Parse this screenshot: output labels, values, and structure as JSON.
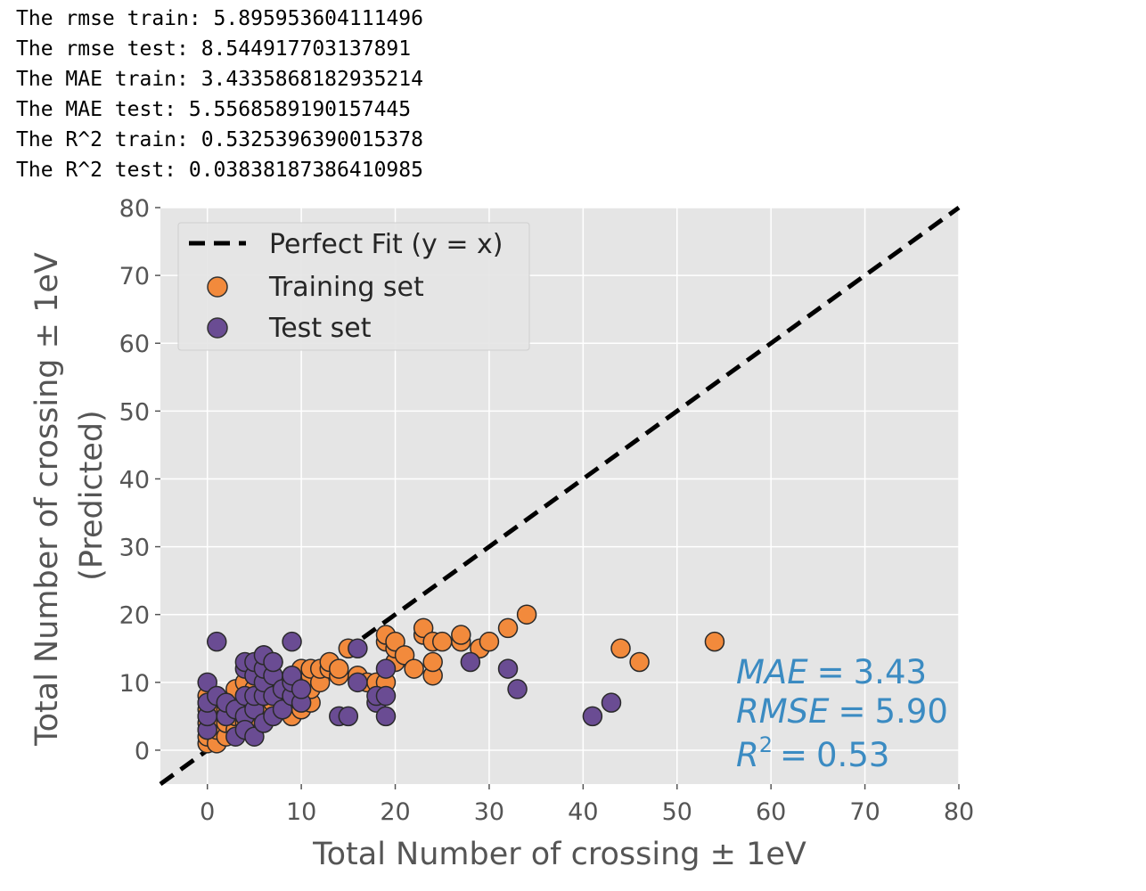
{
  "output_lines": [
    "The rmse train: 5.895953604111496",
    "The rmse test: 8.544917703137891",
    "The MAE train: 3.4335868182935214",
    "The MAE test: 5.5568589190157445",
    "The R^2 train: 0.5325396390015378",
    "The R^2 test: 0.03838187386410985"
  ],
  "chart_data": {
    "type": "scatter",
    "xlabel": "Total Number of crossing ± 1eV",
    "ylabel_lines": [
      "Total Number of crossing ± 1eV",
      "(Predicted)"
    ],
    "xlim": [
      -5,
      80
    ],
    "ylim": [
      -5,
      80
    ],
    "x_ticks": [
      0,
      10,
      20,
      30,
      40,
      50,
      60,
      70,
      80
    ],
    "y_ticks": [
      0,
      10,
      20,
      30,
      40,
      50,
      60,
      70,
      80
    ],
    "grid": true,
    "legend_position": "top-left",
    "reference_line": {
      "name": "Perfect Fit (y = x)",
      "x": [
        -5,
        80
      ],
      "y": [
        -5,
        80
      ],
      "color": "#000000"
    },
    "series": [
      {
        "name": "Training set",
        "color": "#f28a3c",
        "points": [
          [
            0,
            1
          ],
          [
            0,
            2
          ],
          [
            0,
            3
          ],
          [
            0,
            4
          ],
          [
            0,
            5
          ],
          [
            0,
            6
          ],
          [
            0,
            7
          ],
          [
            0,
            8
          ],
          [
            1,
            1
          ],
          [
            1,
            3
          ],
          [
            1,
            5
          ],
          [
            1,
            6
          ],
          [
            1,
            8
          ],
          [
            2,
            2
          ],
          [
            2,
            4
          ],
          [
            2,
            6
          ],
          [
            2,
            7
          ],
          [
            3,
            3
          ],
          [
            3,
            5
          ],
          [
            3,
            6
          ],
          [
            3,
            9
          ],
          [
            4,
            4
          ],
          [
            4,
            6
          ],
          [
            4,
            8
          ],
          [
            4,
            10
          ],
          [
            5,
            5
          ],
          [
            5,
            7
          ],
          [
            5,
            9
          ],
          [
            5,
            11
          ],
          [
            6,
            6
          ],
          [
            6,
            8
          ],
          [
            6,
            12
          ],
          [
            6,
            14
          ],
          [
            7,
            7
          ],
          [
            7,
            9
          ],
          [
            7,
            10
          ],
          [
            7,
            13
          ],
          [
            8,
            6
          ],
          [
            8,
            8
          ],
          [
            8,
            10
          ],
          [
            9,
            5
          ],
          [
            9,
            7
          ],
          [
            9,
            9
          ],
          [
            9,
            11
          ],
          [
            10,
            6
          ],
          [
            10,
            8
          ],
          [
            10,
            10
          ],
          [
            10,
            12
          ],
          [
            11,
            7
          ],
          [
            11,
            9
          ],
          [
            11,
            11
          ],
          [
            11,
            12
          ],
          [
            12,
            10
          ],
          [
            12,
            12
          ],
          [
            13,
            12
          ],
          [
            13,
            13
          ],
          [
            14,
            11
          ],
          [
            14,
            12
          ],
          [
            15,
            15
          ],
          [
            16,
            11
          ],
          [
            17,
            10
          ],
          [
            18,
            10
          ],
          [
            19,
            10
          ],
          [
            19,
            16
          ],
          [
            19,
            17
          ],
          [
            20,
            13
          ],
          [
            20,
            15
          ],
          [
            20,
            16
          ],
          [
            21,
            14
          ],
          [
            22,
            12
          ],
          [
            23,
            17
          ],
          [
            23,
            18
          ],
          [
            24,
            16
          ],
          [
            24,
            11
          ],
          [
            24,
            13
          ],
          [
            25,
            16
          ],
          [
            27,
            16
          ],
          [
            27,
            17
          ],
          [
            29,
            15
          ],
          [
            30,
            16
          ],
          [
            32,
            18
          ],
          [
            34,
            20
          ],
          [
            44,
            15
          ],
          [
            46,
            13
          ],
          [
            54,
            16
          ]
        ]
      },
      {
        "name": "Test set",
        "color": "#6a4c93",
        "points": [
          [
            0,
            3
          ],
          [
            0,
            5
          ],
          [
            0,
            7
          ],
          [
            0,
            10
          ],
          [
            1,
            8
          ],
          [
            1,
            16
          ],
          [
            2,
            5
          ],
          [
            2,
            7
          ],
          [
            3,
            2
          ],
          [
            3,
            6
          ],
          [
            4,
            5
          ],
          [
            4,
            3
          ],
          [
            4,
            8
          ],
          [
            4,
            12
          ],
          [
            4,
            13
          ],
          [
            5,
            2
          ],
          [
            5,
            6
          ],
          [
            5,
            8
          ],
          [
            5,
            11
          ],
          [
            5,
            13
          ],
          [
            6,
            4
          ],
          [
            6,
            8
          ],
          [
            6,
            10
          ],
          [
            6,
            12
          ],
          [
            6,
            14
          ],
          [
            7,
            5
          ],
          [
            7,
            8
          ],
          [
            7,
            11
          ],
          [
            7,
            13
          ],
          [
            8,
            6
          ],
          [
            8,
            9
          ],
          [
            9,
            8
          ],
          [
            9,
            10
          ],
          [
            9,
            11
          ],
          [
            9,
            16
          ],
          [
            10,
            7
          ],
          [
            10,
            9
          ],
          [
            14,
            5
          ],
          [
            15,
            5
          ],
          [
            16,
            10
          ],
          [
            16,
            15
          ],
          [
            18,
            7
          ],
          [
            18,
            8
          ],
          [
            19,
            5
          ],
          [
            19,
            8
          ],
          [
            19,
            12
          ],
          [
            28,
            13
          ],
          [
            32,
            12
          ],
          [
            33,
            9
          ],
          [
            41,
            5
          ],
          [
            43,
            7
          ]
        ]
      }
    ],
    "annotation": {
      "mae_label": "MAE",
      "mae_value": "3.43",
      "rmse_label": "RMSE",
      "rmse_value": "5.90",
      "r2_label": "R",
      "r2_sup": "2",
      "r2_value": "0.53",
      "equals": "=",
      "color": "#3b8bc2"
    }
  }
}
